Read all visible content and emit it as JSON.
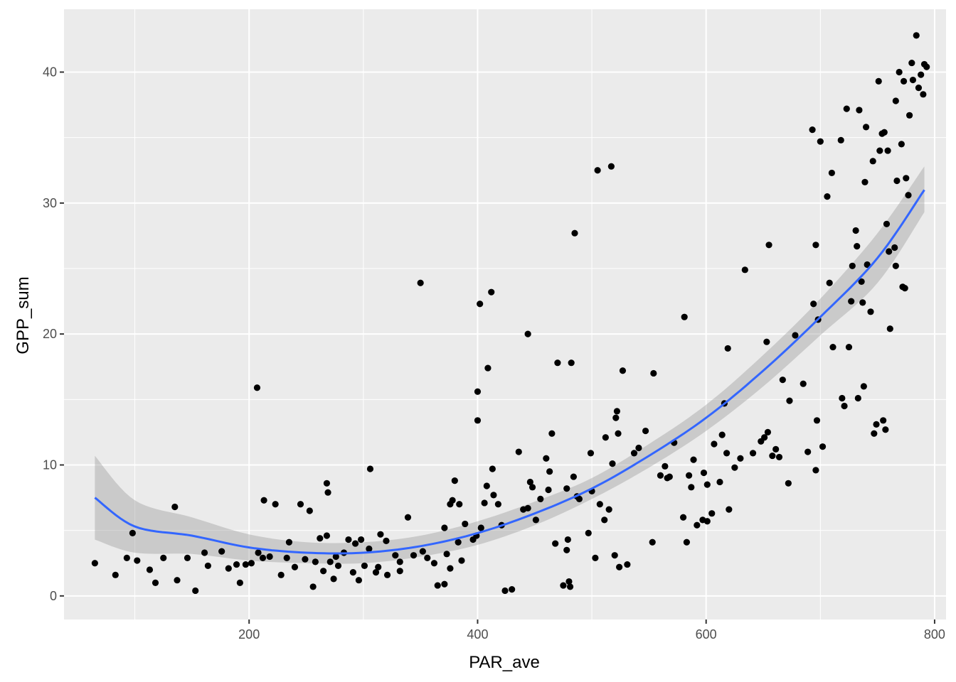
{
  "chart_data": {
    "type": "scatter",
    "title": "",
    "xlabel": "PAR_ave",
    "ylabel": "GPP_sum",
    "xlim": [
      38,
      810
    ],
    "ylim": [
      -1.8,
      44.8
    ],
    "x_ticks": [
      200,
      400,
      600,
      800
    ],
    "x_tick_labels": [
      "200",
      "400",
      "600",
      "800"
    ],
    "y_ticks": [
      0,
      10,
      20,
      30,
      40
    ],
    "y_tick_labels": [
      "0",
      "10",
      "20",
      "30",
      "40"
    ],
    "grid": true,
    "legend": "none",
    "colors": {
      "panel_background": "#ebebeb",
      "grid": "#ffffff",
      "points": "#000000",
      "smooth_line": "#3366ff",
      "confidence_band": "#999999"
    },
    "series": [
      {
        "type": "points",
        "points": [
          [
            65,
            2.5
          ],
          [
            83,
            1.6
          ],
          [
            93,
            2.9
          ],
          [
            98,
            4.8
          ],
          [
            102,
            2.7
          ],
          [
            113,
            2.0
          ],
          [
            118,
            1.0
          ],
          [
            125,
            2.9
          ],
          [
            135,
            6.8
          ],
          [
            137,
            1.2
          ],
          [
            146,
            2.9
          ],
          [
            153,
            0.4
          ],
          [
            161,
            3.3
          ],
          [
            164,
            2.3
          ],
          [
            176,
            3.4
          ],
          [
            182,
            2.1
          ],
          [
            189,
            2.4
          ],
          [
            192,
            1.0
          ],
          [
            197,
            2.4
          ],
          [
            202,
            2.5
          ],
          [
            207,
            15.9
          ],
          [
            208,
            3.3
          ],
          [
            212,
            2.9
          ],
          [
            213,
            7.3
          ],
          [
            218,
            3.0
          ],
          [
            223,
            7.0
          ],
          [
            228,
            1.6
          ],
          [
            233,
            2.9
          ],
          [
            235,
            4.1
          ],
          [
            240,
            2.2
          ],
          [
            245,
            7.0
          ],
          [
            249,
            2.8
          ],
          [
            253,
            6.5
          ],
          [
            256,
            0.7
          ],
          [
            258,
            2.6
          ],
          [
            262,
            4.4
          ],
          [
            265,
            1.9
          ],
          [
            268,
            4.6
          ],
          [
            268,
            8.6
          ],
          [
            269,
            7.9
          ],
          [
            271,
            2.6
          ],
          [
            274,
            1.3
          ],
          [
            276,
            3.0
          ],
          [
            278,
            2.3
          ],
          [
            283,
            3.3
          ],
          [
            287,
            4.3
          ],
          [
            291,
            1.8
          ],
          [
            293,
            4.0
          ],
          [
            296,
            1.2
          ],
          [
            298,
            4.3
          ],
          [
            301,
            2.3
          ],
          [
            305,
            3.6
          ],
          [
            306,
            9.7
          ],
          [
            311,
            1.8
          ],
          [
            313,
            2.2
          ],
          [
            315,
            4.7
          ],
          [
            320,
            4.2
          ],
          [
            321,
            1.6
          ],
          [
            328,
            3.1
          ],
          [
            332,
            2.6
          ],
          [
            332,
            1.9
          ],
          [
            339,
            6.0
          ],
          [
            344,
            3.1
          ],
          [
            350,
            23.9
          ],
          [
            352,
            3.4
          ],
          [
            356,
            2.9
          ],
          [
            362,
            2.5
          ],
          [
            365,
            0.8
          ],
          [
            371,
            0.9
          ],
          [
            371,
            5.2
          ],
          [
            373,
            3.2
          ],
          [
            376,
            2.1
          ],
          [
            376,
            7.0
          ],
          [
            378,
            7.3
          ],
          [
            380,
            8.8
          ],
          [
            383,
            4.1
          ],
          [
            384,
            7.0
          ],
          [
            386,
            2.7
          ],
          [
            389,
            5.5
          ],
          [
            396,
            4.3
          ],
          [
            399,
            4.6
          ],
          [
            400,
            15.6
          ],
          [
            400,
            13.4
          ],
          [
            402,
            22.3
          ],
          [
            403,
            5.2
          ],
          [
            406,
            7.1
          ],
          [
            408,
            8.4
          ],
          [
            409,
            17.4
          ],
          [
            412,
            23.2
          ],
          [
            413,
            9.7
          ],
          [
            414,
            7.7
          ],
          [
            418,
            7.0
          ],
          [
            421,
            5.4
          ],
          [
            424,
            0.4
          ],
          [
            430,
            0.5
          ],
          [
            436,
            11.0
          ],
          [
            440,
            6.6
          ],
          [
            444,
            6.7
          ],
          [
            444,
            20.0
          ],
          [
            446,
            8.7
          ],
          [
            448,
            8.3
          ],
          [
            451,
            5.8
          ],
          [
            455,
            7.4
          ],
          [
            460,
            10.5
          ],
          [
            462,
            8.1
          ],
          [
            463,
            9.5
          ],
          [
            465,
            12.4
          ],
          [
            468,
            4.0
          ],
          [
            470,
            17.8
          ],
          [
            475,
            0.8
          ],
          [
            478,
            3.5
          ],
          [
            478,
            8.2
          ],
          [
            479,
            4.3
          ],
          [
            480,
            1.1
          ],
          [
            481,
            0.7
          ],
          [
            482,
            17.8
          ],
          [
            484,
            9.1
          ],
          [
            485,
            27.7
          ],
          [
            487,
            7.6
          ],
          [
            489,
            7.4
          ],
          [
            497,
            4.8
          ],
          [
            499,
            10.9
          ],
          [
            500,
            8.0
          ],
          [
            503,
            2.9
          ],
          [
            505,
            32.5
          ],
          [
            507,
            7.0
          ],
          [
            511,
            5.8
          ],
          [
            512,
            12.1
          ],
          [
            515,
            6.6
          ],
          [
            517,
            32.8
          ],
          [
            518,
            10.1
          ],
          [
            520,
            3.1
          ],
          [
            521,
            13.6
          ],
          [
            522,
            14.1
          ],
          [
            523,
            12.4
          ],
          [
            524,
            2.2
          ],
          [
            527,
            17.2
          ],
          [
            531,
            2.4
          ],
          [
            537,
            10.9
          ],
          [
            541,
            11.3
          ],
          [
            547,
            12.6
          ],
          [
            553,
            4.1
          ],
          [
            554,
            17.0
          ],
          [
            560,
            9.2
          ],
          [
            564,
            9.9
          ],
          [
            566,
            9.0
          ],
          [
            568,
            9.1
          ],
          [
            572,
            11.7
          ],
          [
            580,
            6.0
          ],
          [
            581,
            21.3
          ],
          [
            583,
            4.1
          ],
          [
            585,
            9.2
          ],
          [
            587,
            8.3
          ],
          [
            589,
            10.4
          ],
          [
            592,
            5.4
          ],
          [
            597,
            5.8
          ],
          [
            598,
            9.4
          ],
          [
            601,
            5.7
          ],
          [
            601,
            8.5
          ],
          [
            605,
            6.3
          ],
          [
            607,
            11.6
          ],
          [
            612,
            8.7
          ],
          [
            614,
            12.3
          ],
          [
            616,
            14.7
          ],
          [
            618,
            10.9
          ],
          [
            619,
            18.9
          ],
          [
            620,
            6.6
          ],
          [
            625,
            9.8
          ],
          [
            630,
            10.5
          ],
          [
            634,
            24.9
          ],
          [
            641,
            10.9
          ],
          [
            648,
            11.8
          ],
          [
            651,
            12.1
          ],
          [
            653,
            19.4
          ],
          [
            654,
            12.5
          ],
          [
            655,
            26.8
          ],
          [
            658,
            10.7
          ],
          [
            661,
            11.2
          ],
          [
            664,
            10.6
          ],
          [
            667,
            16.5
          ],
          [
            672,
            8.6
          ],
          [
            673,
            14.9
          ],
          [
            678,
            19.9
          ],
          [
            685,
            16.2
          ],
          [
            689,
            11.0
          ],
          [
            693,
            35.6
          ],
          [
            694,
            22.3
          ],
          [
            696,
            26.8
          ],
          [
            696,
            9.6
          ],
          [
            697,
            13.4
          ],
          [
            698,
            21.1
          ],
          [
            700,
            34.7
          ],
          [
            702,
            11.4
          ],
          [
            706,
            30.5
          ],
          [
            708,
            23.9
          ],
          [
            710,
            32.3
          ],
          [
            711,
            19.0
          ],
          [
            718,
            34.8
          ],
          [
            719,
            15.1
          ],
          [
            721,
            14.5
          ],
          [
            723,
            37.2
          ],
          [
            725,
            19.0
          ],
          [
            727,
            22.5
          ],
          [
            728,
            25.2
          ],
          [
            731,
            27.9
          ],
          [
            732,
            26.7
          ],
          [
            733,
            15.1
          ],
          [
            734,
            37.1
          ],
          [
            736,
            24.0
          ],
          [
            737,
            22.4
          ],
          [
            738,
            16.0
          ],
          [
            739,
            31.6
          ],
          [
            740,
            35.8
          ],
          [
            741,
            25.3
          ],
          [
            744,
            21.7
          ],
          [
            746,
            33.2
          ],
          [
            747,
            12.4
          ],
          [
            749,
            13.1
          ],
          [
            751,
            39.3
          ],
          [
            752,
            34.0
          ],
          [
            754,
            35.3
          ],
          [
            755,
            13.4
          ],
          [
            756,
            35.4
          ],
          [
            757,
            12.7
          ],
          [
            758,
            28.4
          ],
          [
            759,
            34.0
          ],
          [
            760,
            26.3
          ],
          [
            761,
            20.4
          ],
          [
            765,
            26.6
          ],
          [
            766,
            25.2
          ],
          [
            766,
            37.8
          ],
          [
            767,
            31.7
          ],
          [
            769,
            40.0
          ],
          [
            771,
            34.5
          ],
          [
            772,
            23.6
          ],
          [
            773,
            39.3
          ],
          [
            774,
            23.5
          ],
          [
            775,
            31.9
          ],
          [
            777,
            30.6
          ],
          [
            778,
            36.7
          ],
          [
            780,
            40.7
          ],
          [
            781,
            39.4
          ],
          [
            784,
            42.8
          ],
          [
            786,
            38.8
          ],
          [
            788,
            39.8
          ],
          [
            790,
            38.3
          ],
          [
            791,
            40.6
          ],
          [
            793,
            40.4
          ]
        ]
      },
      {
        "type": "smooth",
        "x": [
          65,
          100,
          150,
          200,
          250,
          300,
          350,
          400,
          450,
          500,
          550,
          600,
          650,
          700,
          750,
          791
        ],
        "y": [
          7.5,
          5.3,
          4.6,
          3.7,
          3.3,
          3.3,
          3.8,
          4.8,
          6.3,
          8.2,
          10.7,
          13.6,
          17.2,
          21.3,
          25.8,
          31.0
        ],
        "ci_lower": [
          4.3,
          3.3,
          3.2,
          2.7,
          2.5,
          2.5,
          3.0,
          3.9,
          5.4,
          7.4,
          9.8,
          12.6,
          16.0,
          19.9,
          23.9,
          29.3
        ],
        "ci_upper": [
          10.7,
          7.3,
          6.0,
          4.7,
          4.1,
          4.1,
          4.6,
          5.7,
          7.2,
          9.0,
          11.6,
          14.6,
          18.4,
          22.7,
          27.7,
          32.8
        ]
      }
    ]
  }
}
